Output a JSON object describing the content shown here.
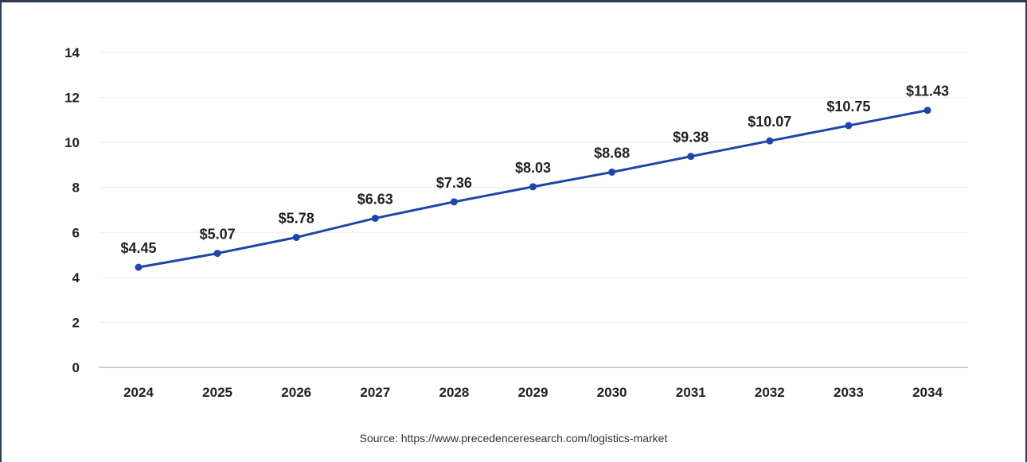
{
  "chart_data": {
    "type": "line",
    "categories": [
      "2024",
      "2025",
      "2026",
      "2027",
      "2028",
      "2029",
      "2030",
      "2031",
      "2032",
      "2033",
      "2034"
    ],
    "values": [
      4.45,
      5.07,
      5.78,
      6.63,
      7.36,
      8.03,
      8.68,
      9.38,
      10.07,
      10.75,
      11.43
    ],
    "data_labels": [
      "$4.45",
      "$5.07",
      "$5.78",
      "$6.63",
      "$7.36",
      "$8.03",
      "$8.68",
      "$9.38",
      "$10.07",
      "$10.75",
      "$11.43"
    ],
    "y_ticks": [
      "0",
      "2",
      "4",
      "6",
      "8",
      "10",
      "12",
      "14"
    ],
    "ylim": [
      0,
      14
    ],
    "grid": true,
    "legend": "none",
    "line_color": "#1f45a8",
    "grid_color": "#eeeeee",
    "axis_color": "#bbbbbb"
  },
  "source_text": "Source: https://www.precedenceresearch.com/logistics-market"
}
